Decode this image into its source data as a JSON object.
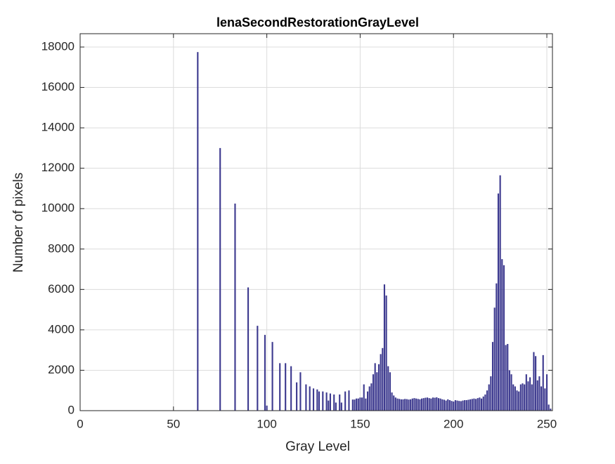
{
  "chart_data": {
    "type": "bar",
    "title": "lenaSecondRestorationGrayLevel",
    "x_label": "Gray Level",
    "y_label": "Number of pixels",
    "x": [
      63,
      75,
      83,
      90,
      95,
      99,
      100,
      103,
      107,
      110,
      113,
      116,
      118,
      121,
      123,
      125,
      127,
      128,
      130,
      132,
      133,
      134,
      136,
      137,
      139,
      140,
      142,
      144,
      146,
      147,
      148,
      149,
      150,
      151,
      152,
      153,
      154,
      155,
      156,
      157,
      158,
      159,
      160,
      161,
      162,
      163,
      164,
      165,
      166,
      167,
      168,
      169,
      170,
      171,
      172,
      173,
      174,
      175,
      176,
      177,
      178,
      179,
      180,
      181,
      182,
      183,
      184,
      185,
      186,
      187,
      188,
      189,
      190,
      191,
      192,
      193,
      194,
      195,
      196,
      197,
      198,
      199,
      200,
      201,
      202,
      203,
      204,
      205,
      206,
      207,
      208,
      209,
      210,
      211,
      212,
      213,
      214,
      215,
      216,
      217,
      218,
      219,
      220,
      221,
      222,
      223,
      224,
      225,
      226,
      227,
      228,
      229,
      230,
      231,
      232,
      233,
      234,
      235,
      236,
      237,
      238,
      239,
      240,
      241,
      242,
      243,
      244,
      245,
      246,
      247,
      248,
      249,
      250,
      251,
      252
    ],
    "values": [
      17750,
      13000,
      10250,
      6100,
      4200,
      3750,
      250,
      3400,
      2350,
      2350,
      2200,
      1400,
      1900,
      1300,
      1200,
      1100,
      1050,
      950,
      950,
      900,
      500,
      850,
      800,
      400,
      800,
      400,
      950,
      1000,
      550,
      550,
      600,
      600,
      650,
      650,
      1300,
      600,
      950,
      1200,
      1350,
      1800,
      2350,
      1900,
      2300,
      2800,
      3100,
      6250,
      5700,
      2200,
      1900,
      900,
      750,
      650,
      600,
      580,
      560,
      560,
      580,
      570,
      550,
      560,
      600,
      620,
      600,
      580,
      560,
      600,
      620,
      640,
      650,
      620,
      600,
      650,
      640,
      660,
      620,
      600,
      560,
      540,
      500,
      560,
      520,
      480,
      450,
      520,
      500,
      480,
      470,
      500,
      520,
      520,
      540,
      560,
      580,
      600,
      580,
      620,
      650,
      600,
      700,
      800,
      1000,
      1300,
      1700,
      3400,
      5100,
      6300,
      10750,
      11650,
      7500,
      7200,
      3250,
      3300,
      2000,
      1800,
      1300,
      1200,
      1000,
      950,
      1300,
      1350,
      1300,
      1800,
      1450,
      1650,
      1300,
      2900,
      2700,
      1500,
      1700,
      1200,
      2750,
      1100,
      1800,
      300,
      100
    ],
    "color": "#3d3a8f",
    "xlim": [
      0,
      253
    ],
    "xticks": [
      0,
      50,
      100,
      150,
      200,
      250
    ],
    "ylim": [
      0,
      18660
    ],
    "yticks": [
      0,
      2000,
      4000,
      6000,
      8000,
      10000,
      12000,
      14000,
      16000,
      18000
    ],
    "grid": true
  }
}
